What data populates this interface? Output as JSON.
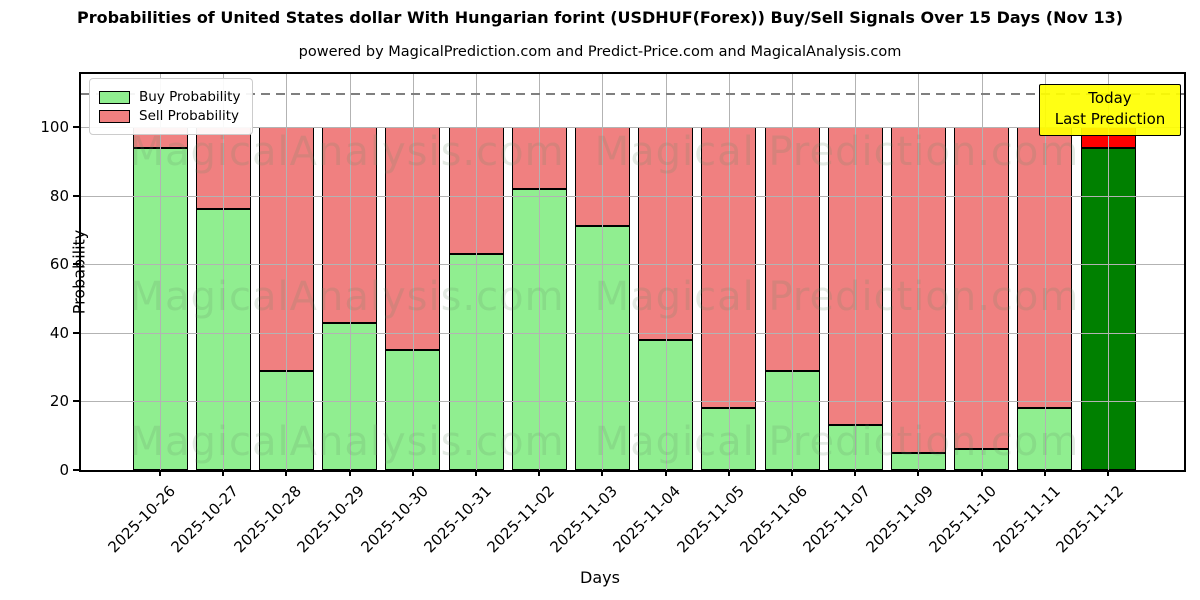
{
  "chart_data": {
    "type": "bar",
    "stacked": true,
    "title": "Probabilities of United States dollar With Hungarian forint (USDHUF(Forex)) Buy/Sell Signals Over 15 Days (Nov 13)",
    "subtitle": "powered by MagicalPrediction.com and Predict-Price.com and MagicalAnalysis.com",
    "xlabel": "Days",
    "ylabel": "Probability",
    "ylim": [
      0,
      115
    ],
    "yticks": [
      0,
      20,
      40,
      60,
      80,
      100
    ],
    "dashed_line_y": 110,
    "grid": true,
    "legend_position": "upper left",
    "categories": [
      "2025-10-26",
      "2025-10-27",
      "2025-10-28",
      "2025-10-29",
      "2025-10-30",
      "2025-10-31",
      "2025-11-02",
      "2025-11-03",
      "2025-11-04",
      "2025-11-05",
      "2025-11-06",
      "2025-11-07",
      "2025-11-09",
      "2025-11-10",
      "2025-11-11",
      "2025-11-12"
    ],
    "series": [
      {
        "name": "Buy Probability",
        "color": "#90EE90",
        "values": [
          94,
          76,
          29,
          43,
          35,
          63,
          82,
          71,
          38,
          18,
          29,
          13,
          5,
          6,
          18,
          94
        ]
      },
      {
        "name": "Sell Probability",
        "color": "#F08080",
        "values": [
          6,
          24,
          71,
          57,
          65,
          37,
          18,
          29,
          62,
          82,
          71,
          87,
          95,
          94,
          82,
          6
        ]
      }
    ],
    "today_bar": {
      "category": "2025-11-12",
      "index": 15,
      "buy_color": "#008000",
      "sell_color": "#FF0000"
    },
    "annotation": {
      "line1": "Today",
      "line2": "Last Prediction",
      "bg_color": "#FFFF00"
    },
    "watermarks": {
      "left": "MagicalAnalysis.com",
      "right": "Magical Prediction.com"
    },
    "colors": {
      "buy": "#90EE90",
      "sell": "#F08080",
      "today_buy": "#008000",
      "today_sell": "#FF0000",
      "grid": "#b3b3b3",
      "dashed_line": "#7f7f7f",
      "annotation_bg": "#FFFF00"
    }
  }
}
